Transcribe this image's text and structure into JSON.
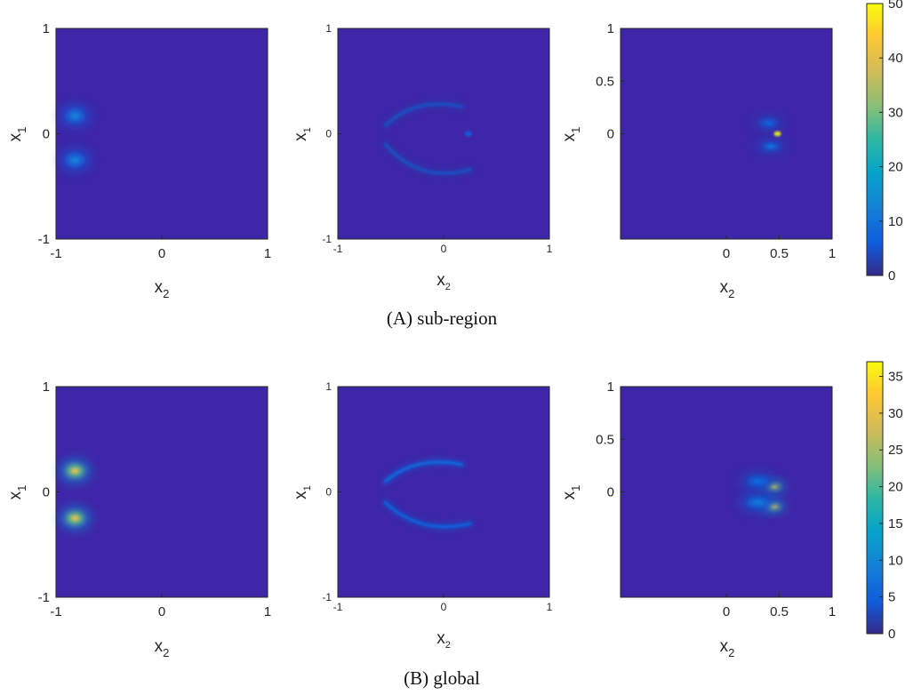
{
  "chart_data": [
    {
      "type": "heatmap",
      "caption": "(A) sub-region",
      "colorbar": {
        "range": [
          0,
          50
        ],
        "ticks": [
          "0",
          "10",
          "20",
          "30",
          "40",
          "50"
        ]
      },
      "panels": [
        {
          "xlabel": "x",
          "xlabel_sub": "2",
          "ylabel": "x",
          "ylabel_sub": "1",
          "xlim": [
            -1,
            1
          ],
          "ylim": [
            -1,
            1
          ],
          "xticks": [
            {
              "v": -1,
              "t": "-1"
            },
            {
              "v": 0,
              "t": "0"
            },
            {
              "v": 1,
              "t": "1"
            }
          ],
          "yticks": [
            {
              "v": -1,
              "t": "-1"
            },
            {
              "v": 0,
              "t": "0"
            },
            {
              "v": 1,
              "t": "1"
            }
          ],
          "features": [
            {
              "shape": "blob",
              "x": -0.82,
              "y": 0.17,
              "rx": 0.08,
              "ry": 0.06,
              "peak": 12
            },
            {
              "shape": "blob",
              "x": -0.82,
              "y": -0.25,
              "rx": 0.08,
              "ry": 0.06,
              "peak": 12
            }
          ]
        },
        {
          "xlabel": "x",
          "xlabel_sub": "2",
          "ylabel": "x",
          "ylabel_sub": "1",
          "xlim": [
            -1,
            1
          ],
          "ylim": [
            -1,
            1
          ],
          "xticks": [
            {
              "v": -1,
              "t": "-1"
            },
            {
              "v": 0,
              "t": "0"
            },
            {
              "v": 1,
              "t": "1"
            }
          ],
          "yticks": [
            {
              "v": -1,
              "t": "-1"
            },
            {
              "v": 0,
              "t": "0"
            },
            {
              "v": 1,
              "t": "1"
            }
          ],
          "features": [
            {
              "shape": "arc",
              "x": -0.1,
              "y": 0.3,
              "bend": 0.22,
              "span": 0.45,
              "peak": 5
            },
            {
              "shape": "arc",
              "x": -0.05,
              "y": -0.4,
              "bend": -0.3,
              "span": 0.5,
              "peak": 5
            },
            {
              "shape": "streak",
              "x1": -0.42,
              "x2": 0.25,
              "y": 0.0,
              "peak": 6
            }
          ]
        },
        {
          "xlabel": "x",
          "xlabel_sub": "2",
          "ylabel": "x",
          "ylabel_sub": "1",
          "xlim": [
            -1,
            1
          ],
          "ylim": [
            -1,
            1
          ],
          "xticks": [
            {
              "v": 0,
              "t": "0"
            },
            {
              "v": 0.5,
              "t": "0.5"
            },
            {
              "v": 1,
              "t": "1"
            }
          ],
          "yticks": [
            {
              "v": 0,
              "t": "0"
            },
            {
              "v": 0.5,
              "t": "0.5"
            },
            {
              "v": 1,
              "t": "1"
            }
          ],
          "features": [
            {
              "shape": "streak",
              "x1": 0.1,
              "x2": 0.5,
              "y": 0.0,
              "peak": 50
            },
            {
              "shape": "blob",
              "x": 0.42,
              "y": -0.12,
              "rx": 0.08,
              "ry": 0.03,
              "peak": 10
            },
            {
              "shape": "blob",
              "x": 0.4,
              "y": 0.1,
              "rx": 0.08,
              "ry": 0.04,
              "peak": 7
            }
          ]
        }
      ]
    },
    {
      "type": "heatmap",
      "caption": "(B) global",
      "colorbar": {
        "range": [
          0,
          37
        ],
        "ticks": [
          "0",
          "5",
          "10",
          "15",
          "20",
          "25",
          "30",
          "35"
        ]
      },
      "panels": [
        {
          "xlabel": "x",
          "xlabel_sub": "2",
          "ylabel": "x",
          "ylabel_sub": "1",
          "xlim": [
            -1,
            1
          ],
          "ylim": [
            -1,
            1
          ],
          "xticks": [
            {
              "v": -1,
              "t": "-1"
            },
            {
              "v": 0,
              "t": "0"
            },
            {
              "v": 1,
              "t": "1"
            }
          ],
          "yticks": [
            {
              "v": -1,
              "t": "-1"
            },
            {
              "v": 0,
              "t": "0"
            },
            {
              "v": 1,
              "t": "1"
            }
          ],
          "features": [
            {
              "shape": "blob",
              "x": -0.82,
              "y": 0.2,
              "rx": 0.08,
              "ry": 0.06,
              "peak": 28
            },
            {
              "shape": "blob",
              "x": -0.82,
              "y": -0.25,
              "rx": 0.08,
              "ry": 0.06,
              "peak": 28
            }
          ]
        },
        {
          "xlabel": "x",
          "xlabel_sub": "2",
          "ylabel": "x",
          "ylabel_sub": "1",
          "xlim": [
            -1,
            1
          ],
          "ylim": [
            -1,
            1
          ],
          "xticks": [
            {
              "v": -1,
              "t": "-1"
            },
            {
              "v": 0,
              "t": "0"
            },
            {
              "v": 1,
              "t": "1"
            }
          ],
          "yticks": [
            {
              "v": -1,
              "t": "-1"
            },
            {
              "v": 0,
              "t": "0"
            },
            {
              "v": 1,
              "t": "1"
            }
          ],
          "features": [
            {
              "shape": "arc",
              "x": -0.1,
              "y": 0.3,
              "bend": 0.2,
              "span": 0.45,
              "peak": 7
            },
            {
              "shape": "arc",
              "x": -0.05,
              "y": -0.35,
              "bend": -0.25,
              "span": 0.5,
              "peak": 6
            }
          ]
        },
        {
          "xlabel": "x",
          "xlabel_sub": "2",
          "ylabel": "x",
          "ylabel_sub": "1",
          "xlim": [
            -1,
            1
          ],
          "ylim": [
            -1,
            1
          ],
          "xticks": [
            {
              "v": 0,
              "t": "0"
            },
            {
              "v": 0.5,
              "t": "0.5"
            },
            {
              "v": 1,
              "t": "1"
            }
          ],
          "yticks": [
            {
              "v": 0,
              "t": "0"
            },
            {
              "v": 0.5,
              "t": "0.5"
            },
            {
              "v": 1,
              "t": "1"
            }
          ],
          "features": [
            {
              "shape": "blob",
              "x": 0.45,
              "y": 0.05,
              "rx": 0.06,
              "ry": 0.03,
              "peak": 30
            },
            {
              "shape": "blob",
              "x": 0.45,
              "y": -0.14,
              "rx": 0.06,
              "ry": 0.03,
              "peak": 30
            },
            {
              "shape": "blob",
              "x": 0.3,
              "y": -0.1,
              "rx": 0.1,
              "ry": 0.05,
              "peak": 8
            },
            {
              "shape": "blob",
              "x": 0.3,
              "y": 0.1,
              "rx": 0.1,
              "ry": 0.05,
              "peak": 6
            }
          ]
        }
      ]
    }
  ]
}
